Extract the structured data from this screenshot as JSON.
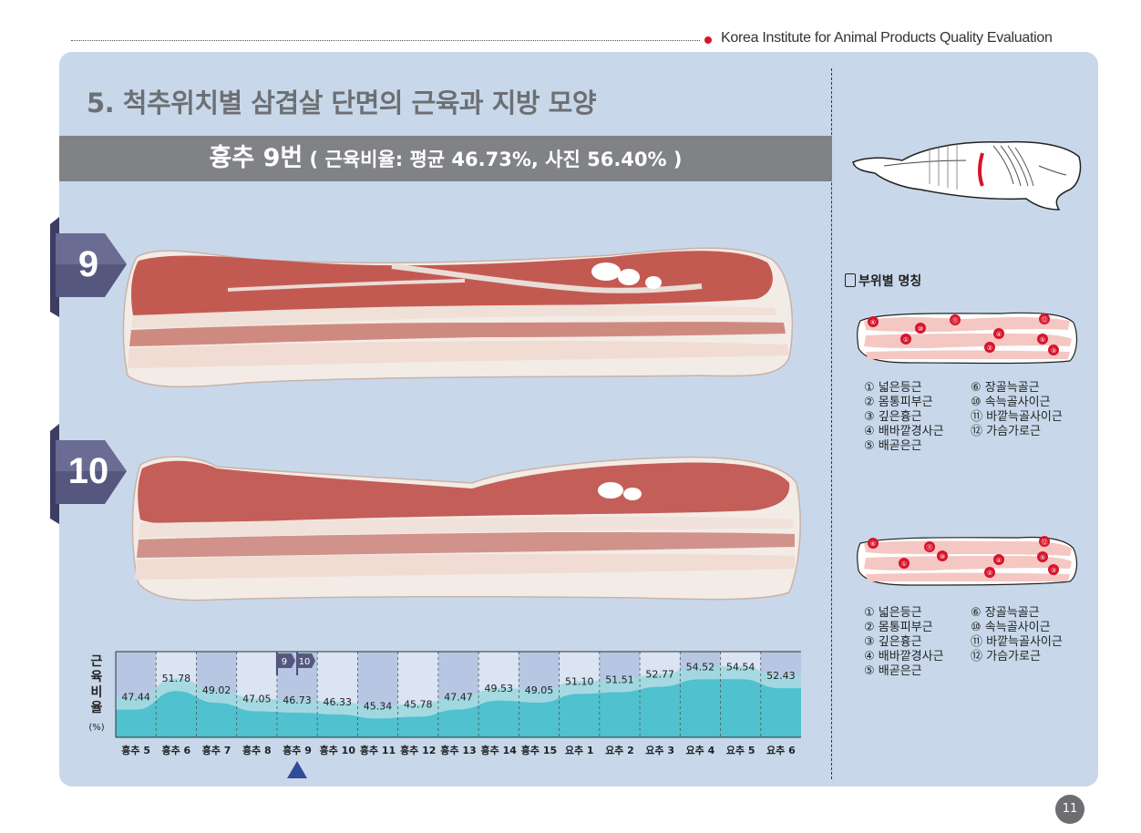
{
  "header": {
    "org": "Korea Institute for Animal Products Quality Evaluation"
  },
  "page": {
    "title": "5. 척추위치별 삼겹살 단면의 근육과 지방 모양",
    "banner_main": "흉추 9번",
    "banner_sub": " ( 근육비율: 평균 46.73%, 사진 56.40% )",
    "tab_top": "9",
    "tab_bottom": "10",
    "page_number": "11"
  },
  "sidebar": {
    "section_title": "부위별 명칭",
    "legend_top": {
      "left": [
        "① 넓은등근",
        "② 몸통피부근",
        "③ 깊은흉근",
        "④ 배바깥경사근",
        "⑤ 배곧은근"
      ],
      "right": [
        "⑥ 장골늑골근",
        "⑩ 속늑골사이근",
        "⑪ 바깥늑골사이근",
        "⑫ 가슴가로근"
      ]
    },
    "legend_bottom": {
      "left": [
        "① 넓은등근",
        "② 몸통피부근",
        "③ 깊은흉근",
        "④ 배바깥경사근",
        "⑤ 배곧은근"
      ],
      "right": [
        "⑥ 장골늑골근",
        "⑩ 속늑골사이근",
        "⑪ 바깥늑골사이근",
        "⑫ 가슴가로근"
      ]
    },
    "diagram_labels": [
      "⑥",
      "⑩",
      "⑪",
      "⑫",
      "①",
      "④",
      "⑤",
      "②",
      "③"
    ]
  },
  "chart_data": {
    "type": "area",
    "ylabel": "근육비율",
    "yunit": "(%)",
    "categories": [
      "흉추 5",
      "흉추 6",
      "흉추 7",
      "흉추 8",
      "흉추 9",
      "흉추 10",
      "흉추 11",
      "흉추 12",
      "흉추 13",
      "흉추 14",
      "흉추 15",
      "요추 1",
      "요추 2",
      "요추 3",
      "요추 4",
      "요추 5",
      "요추 6"
    ],
    "values": [
      47.44,
      51.78,
      49.02,
      47.05,
      46.73,
      46.33,
      45.34,
      45.78,
      47.47,
      49.53,
      49.05,
      51.1,
      51.51,
      52.77,
      54.52,
      54.54,
      52.43
    ],
    "value_labels": [
      "47.44",
      "51.78",
      "49.02",
      "47.05",
      "46.73",
      "46.33",
      "45.34",
      "45.78",
      "47.47",
      "49.53",
      "49.05",
      "51.10",
      "51.51",
      "52.77",
      "54.52",
      "54.54",
      "52.43"
    ],
    "markers": [
      "9",
      "10"
    ],
    "highlight_category": "흉추 9",
    "colors": {
      "area": "#4fc1cf",
      "band_dark": "#b7c7e3",
      "band_light": "#dbe4f2",
      "pointer": "#2f4b9a"
    }
  }
}
